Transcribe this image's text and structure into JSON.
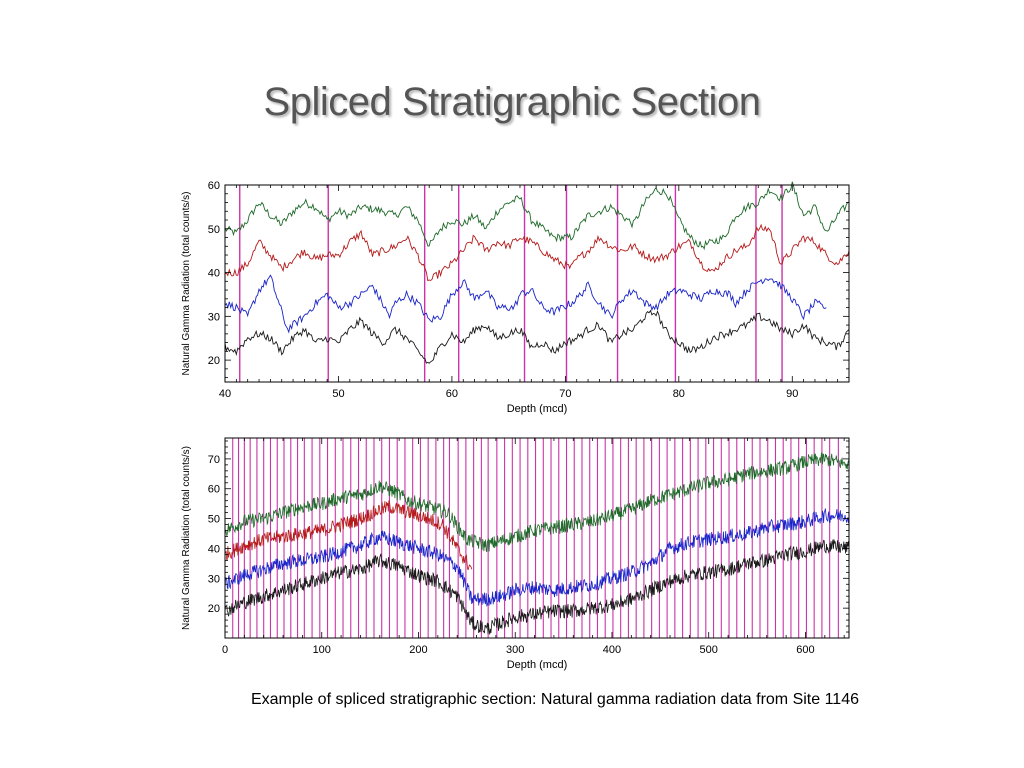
{
  "title": "Spliced Stratigraphic Section",
  "caption": "Example of spliced stratigraphic section: Natural gamma radiation data from Site 1146",
  "colors": {
    "splice_line": "#cc33aa",
    "green": "#1f6a2a",
    "red": "#b51a1a",
    "blue": "#1a24c8",
    "black": "#1a1a1a"
  },
  "chart_data": [
    {
      "type": "line",
      "xlabel": "Depth (mcd)",
      "ylabel": "Natural Gamma Radiation (total counts/s)",
      "xlim": [
        40,
        95
      ],
      "ylim": [
        15,
        60
      ],
      "x_ticks": [
        40,
        50,
        60,
        70,
        80,
        90
      ],
      "y_ticks": [
        20,
        30,
        40,
        50,
        60
      ],
      "splice_depths": [
        41.3,
        49.1,
        57.6,
        60.6,
        66.4,
        70.1,
        74.6,
        79.7,
        86.8,
        89.1
      ],
      "series": [
        {
          "color": "green",
          "x": [
            40,
            41,
            42,
            43,
            44,
            45,
            46,
            47,
            48,
            49,
            50,
            51,
            52,
            54,
            55,
            56,
            57,
            58,
            59,
            60,
            61,
            62,
            63,
            64,
            65,
            66,
            67,
            68,
            69,
            70.5,
            72,
            73,
            74,
            75,
            76,
            77,
            78,
            79,
            80,
            81,
            82,
            84,
            85,
            86,
            87,
            88,
            89,
            90,
            91,
            92,
            93,
            94,
            95
          ],
          "y": [
            50,
            49,
            52,
            56,
            53,
            51,
            54,
            56,
            55,
            52,
            54,
            53,
            55,
            54,
            53,
            55,
            52,
            46,
            50,
            52,
            51,
            53,
            50,
            54,
            56,
            57,
            52,
            50,
            48,
            48,
            53,
            54,
            55,
            53,
            51,
            56,
            59,
            58,
            52,
            48,
            46,
            48,
            53,
            55,
            56,
            59,
            57,
            60,
            53,
            55,
            49,
            53,
            56
          ]
        },
        {
          "color": "red",
          "x": [
            40,
            41,
            42,
            43,
            44,
            45,
            46,
            47,
            48,
            49,
            50,
            51,
            52,
            53,
            55,
            56,
            57,
            58,
            59,
            60,
            61,
            62,
            63,
            64,
            65,
            66,
            67,
            68,
            69,
            70.5,
            71,
            72,
            73,
            74,
            75,
            76,
            77,
            78,
            79,
            80,
            81,
            82,
            83,
            84,
            85,
            86,
            87,
            88,
            89,
            90,
            91,
            92,
            93,
            94,
            95
          ],
          "y": [
            40,
            40,
            42,
            47,
            44,
            41,
            43,
            45,
            43,
            44,
            44,
            47,
            49,
            44,
            46,
            48,
            44,
            38,
            40,
            42,
            45,
            48,
            45,
            47,
            46,
            48,
            47,
            45,
            43,
            41,
            43,
            45,
            48,
            46,
            45,
            46,
            44,
            43,
            44,
            46,
            47,
            42,
            40,
            43,
            45,
            46,
            50,
            50,
            42,
            45,
            48,
            47,
            44,
            42,
            45
          ]
        },
        {
          "color": "blue",
          "x": [
            40,
            41,
            42,
            43,
            44,
            45.5,
            46,
            47,
            48,
            49,
            50,
            51,
            52,
            53,
            54.5,
            55,
            56,
            57,
            58,
            59,
            60,
            61,
            62,
            63,
            64,
            65.5,
            66,
            67,
            68,
            69,
            70.5,
            71,
            72,
            73,
            74,
            75,
            76,
            77,
            78,
            79,
            80,
            81,
            82,
            83,
            84.5,
            85,
            86,
            87,
            88,
            89,
            90,
            91,
            92,
            93
          ],
          "y": [
            33,
            32,
            30,
            36,
            39,
            27,
            28,
            30,
            33,
            35,
            32,
            33,
            35,
            37,
            30,
            33,
            35,
            33,
            29,
            30,
            35,
            38,
            34,
            36,
            32,
            32,
            35,
            36,
            32,
            31,
            33,
            34,
            37,
            33,
            30,
            34,
            36,
            33,
            32,
            35,
            36,
            35,
            34,
            36,
            35,
            33,
            36,
            38,
            39,
            37,
            34,
            30,
            33,
            32
          ]
        },
        {
          "color": "black",
          "x": [
            40,
            41,
            42,
            43,
            44,
            45,
            46,
            47,
            48,
            49,
            50,
            51,
            52,
            53,
            54,
            55,
            56,
            57,
            58,
            59,
            60,
            61,
            62,
            63,
            64,
            65,
            66,
            67,
            68,
            69,
            70,
            71,
            72,
            73,
            74,
            75,
            76,
            77,
            78,
            79,
            80,
            81,
            82,
            83,
            84,
            85,
            86,
            87,
            88,
            89,
            90,
            91,
            92,
            93,
            94,
            95
          ],
          "y": [
            23,
            22,
            25,
            26,
            25,
            22,
            25,
            27,
            24,
            25,
            24,
            27,
            29,
            26,
            24,
            27,
            25,
            22,
            19,
            23,
            26,
            24,
            27,
            28,
            25,
            26,
            27,
            23,
            24,
            22,
            24,
            25,
            27,
            28,
            24,
            26,
            27,
            30,
            31,
            26,
            24,
            22,
            23,
            25,
            26,
            27,
            28,
            30,
            29,
            27,
            26,
            28,
            25,
            24,
            23,
            27
          ]
        }
      ]
    },
    {
      "type": "line",
      "xlabel": "Depth (mcd)",
      "ylabel": "Natural Gamma Radiation (total counts/s)",
      "xlim": [
        0,
        645
      ],
      "ylim": [
        10,
        77
      ],
      "x_ticks": [
        0,
        100,
        200,
        300,
        400,
        500,
        600
      ],
      "y_ticks": [
        20,
        30,
        40,
        50,
        60,
        70
      ],
      "splice_depths": [
        8,
        14,
        20,
        26,
        33,
        40,
        47,
        54,
        61,
        68,
        75,
        82,
        90,
        98,
        106,
        114,
        122,
        130,
        138,
        146,
        154,
        162,
        170,
        178,
        186,
        194,
        202,
        210,
        218,
        226,
        232,
        241,
        249,
        257,
        265,
        272,
        281,
        289,
        297,
        305,
        313,
        321,
        329,
        337,
        345,
        353,
        361,
        369,
        377,
        385,
        393,
        401,
        409,
        417,
        425,
        433,
        441,
        449,
        457,
        465,
        473,
        481,
        489,
        497,
        505,
        513,
        521,
        529,
        537,
        545,
        553,
        561,
        569,
        577,
        585,
        593,
        601,
        609,
        617,
        625,
        634
      ],
      "series": [
        {
          "color": "green",
          "x": [
            0,
            20,
            40,
            60,
            80,
            100,
            120,
            140,
            160,
            175,
            190,
            210,
            230,
            250,
            270,
            280,
            300,
            320,
            340,
            360,
            380,
            400,
            420,
            440,
            460,
            480,
            500,
            520,
            540,
            560,
            580,
            600,
            620,
            645
          ],
          "y": [
            46,
            49,
            50,
            52,
            54,
            55,
            57,
            58,
            61,
            59,
            56,
            54,
            52,
            43,
            41,
            42,
            44,
            46,
            47,
            48,
            49,
            51,
            53,
            56,
            58,
            60,
            62,
            63,
            65,
            66,
            67,
            69,
            70,
            68
          ]
        },
        {
          "color": "red",
          "x": [
            0,
            20,
            40,
            60,
            80,
            100,
            120,
            140,
            160,
            170,
            190,
            210,
            225,
            240,
            255
          ],
          "y": [
            38,
            41,
            43,
            44,
            45,
            46,
            48,
            50,
            53,
            54,
            52,
            50,
            48,
            40,
            33
          ]
        },
        {
          "color": "blue",
          "x": [
            0,
            20,
            40,
            60,
            80,
            100,
            120,
            140,
            160,
            180,
            200,
            220,
            240,
            255,
            270,
            285,
            300,
            320,
            340,
            360,
            380,
            400,
            420,
            440,
            460,
            480,
            500,
            520,
            540,
            560,
            580,
            600,
            620,
            645
          ],
          "y": [
            28,
            31,
            33,
            35,
            36,
            37,
            39,
            41,
            44,
            42,
            40,
            38,
            34,
            23,
            23,
            24,
            26,
            27,
            26,
            27,
            28,
            30,
            32,
            35,
            40,
            42,
            43,
            44,
            45,
            47,
            48,
            49,
            51,
            51
          ]
        },
        {
          "color": "black",
          "x": [
            0,
            20,
            40,
            60,
            80,
            100,
            120,
            140,
            160,
            180,
            200,
            220,
            240,
            255,
            270,
            285,
            300,
            320,
            340,
            360,
            380,
            400,
            420,
            440,
            460,
            480,
            500,
            520,
            540,
            560,
            580,
            600,
            620,
            645
          ],
          "y": [
            19,
            22,
            24,
            26,
            28,
            30,
            32,
            33,
            36,
            34,
            31,
            29,
            24,
            15,
            13,
            15,
            17,
            18,
            19,
            19,
            20,
            21,
            23,
            26,
            29,
            31,
            32,
            33,
            35,
            36,
            38,
            39,
            41,
            40
          ]
        }
      ]
    }
  ]
}
